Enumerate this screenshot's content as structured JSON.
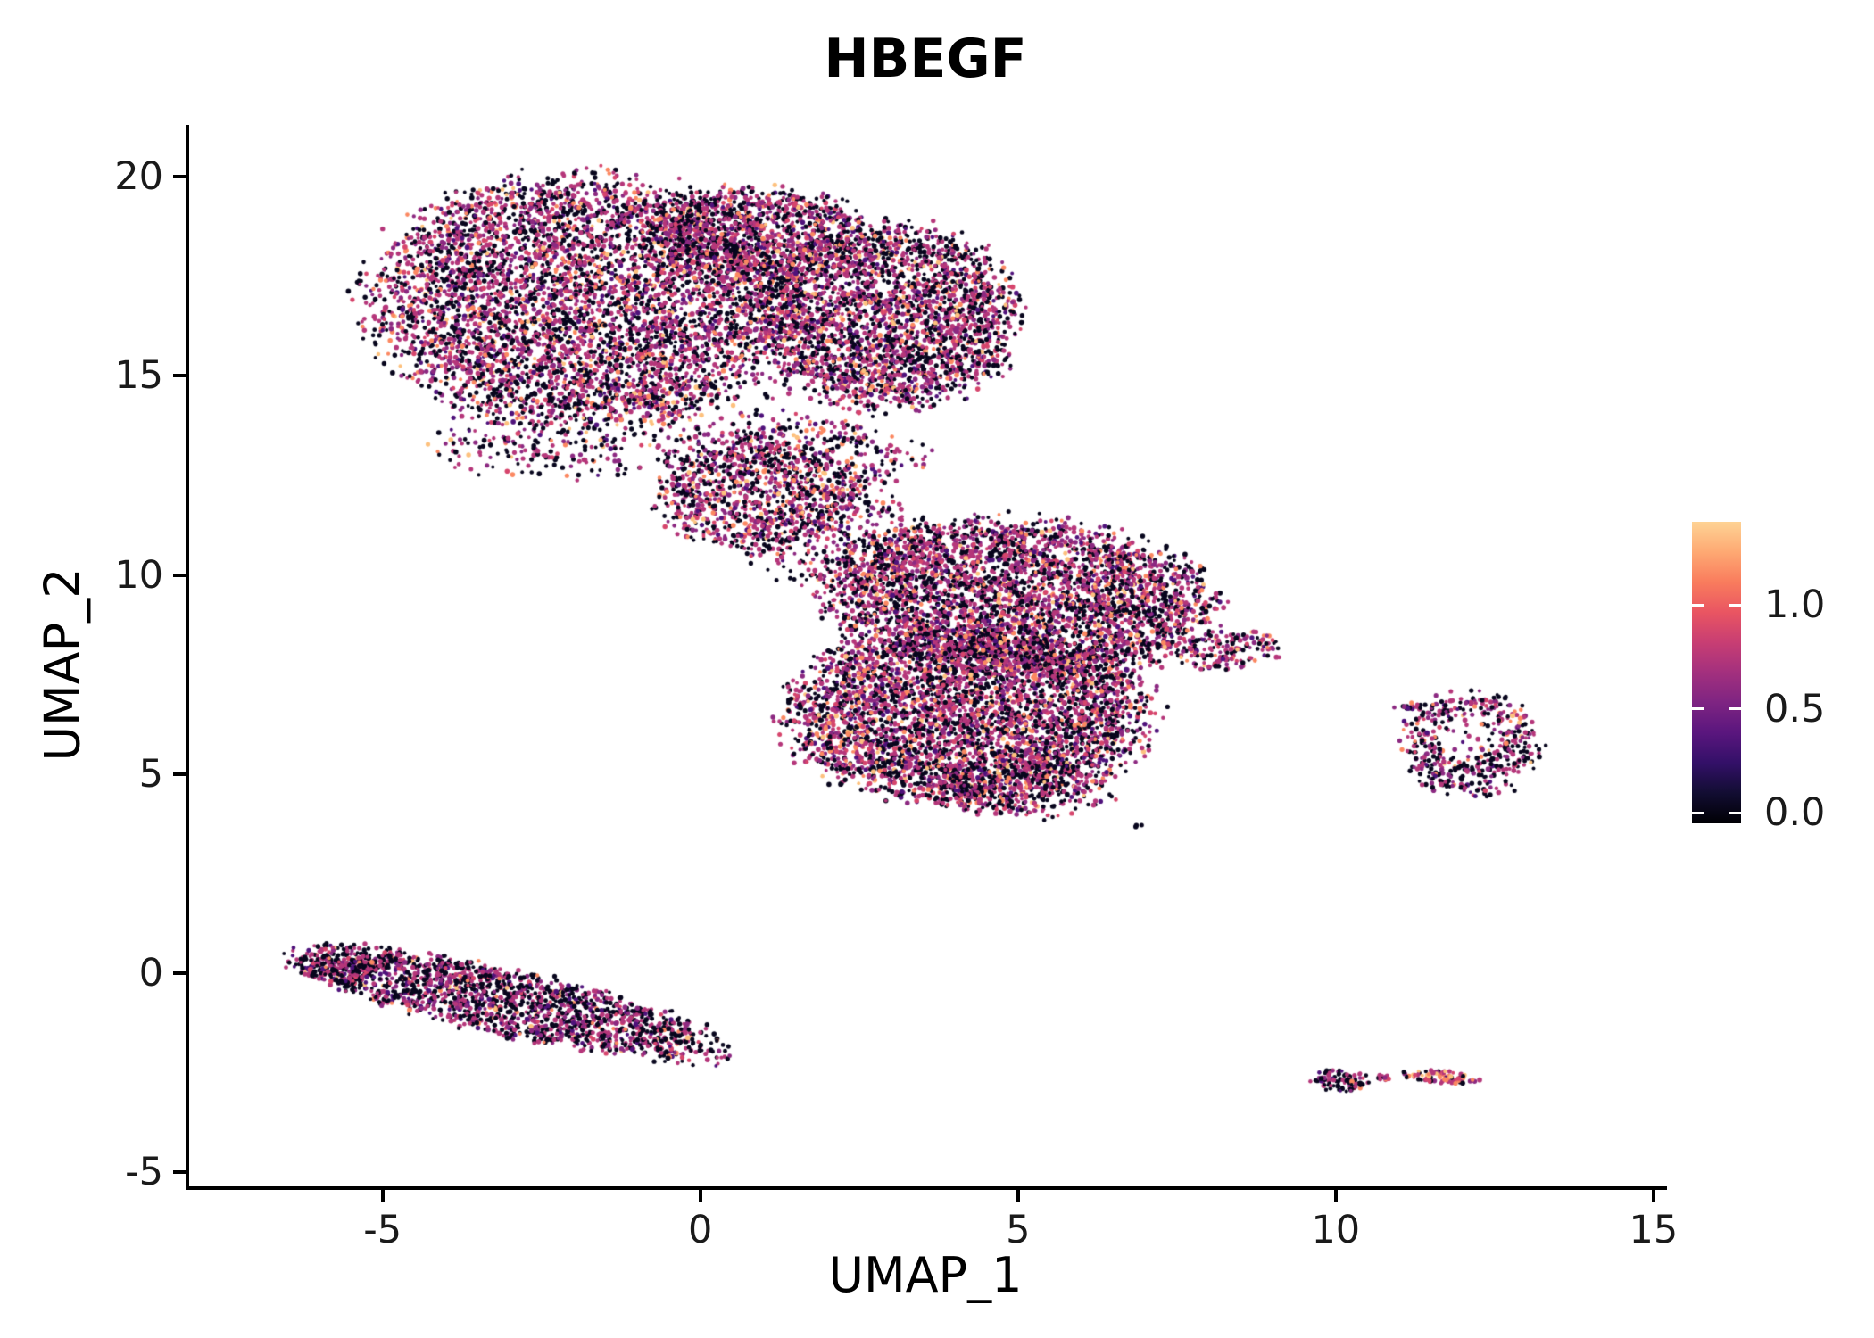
{
  "chart_data": {
    "type": "scatter",
    "title": "HBEGF",
    "xlabel": "UMAP_1",
    "ylabel": "UMAP_2",
    "x_ticks": [
      -5,
      0,
      5,
      10,
      15
    ],
    "y_ticks": [
      -5,
      0,
      5,
      10,
      15,
      20
    ],
    "xlim": [
      -8.07,
      15.17
    ],
    "ylim": [
      -5.35,
      21.3
    ],
    "grid": false,
    "background": "#ffffff",
    "point_radius_px": 2.4,
    "colorbar": {
      "position": "right",
      "colormap": "magma",
      "domain": [
        -0.05,
        1.4
      ],
      "ticks": [
        {
          "label": "1.0",
          "value": 1.0
        },
        {
          "label": "0.5",
          "value": 0.5
        },
        {
          "label": "0.0",
          "value": 0.0
        }
      ],
      "stops": [
        "#000004",
        "#120d32",
        "#331068",
        "#5a167e",
        "#7e2482",
        "#a3307e",
        "#c83e73",
        "#e95562",
        "#f97c5d",
        "#fea973",
        "#fed395"
      ]
    },
    "palette": {
      "zero": "#08061d",
      "low": "#4f127b",
      "mid": "#8c2981",
      "mid2": "#b5367a",
      "pink": "#d6456c",
      "orange": "#fb8861",
      "peach": "#fdc17e"
    },
    "mixes": {
      "default": {
        "zero": 0.36,
        "low": 0.06,
        "mid": 0.14,
        "mid2": 0.27,
        "pink": 0.07,
        "orange": 0.07,
        "peach": 0.03
      },
      "band": {
        "zero": 0.44,
        "low": 0.07,
        "mid": 0.14,
        "mid2": 0.27,
        "pink": 0.04,
        "orange": 0.03,
        "peach": 0.01
      },
      "diamond": {
        "zero": 0.42,
        "low": 0.06,
        "mid": 0.13,
        "mid2": 0.28,
        "pink": 0.04,
        "orange": 0.05,
        "peach": 0.02
      },
      "blob-a": {
        "zero": 0.45,
        "low": 0.05,
        "mid": 0.12,
        "mid2": 0.3,
        "pink": 0.04,
        "orange": 0.03,
        "peach": 0.01
      },
      "blob-b": {
        "zero": 0.15,
        "low": 0.03,
        "mid": 0.1,
        "mid2": 0.22,
        "pink": 0.12,
        "orange": 0.23,
        "peach": 0.15
      }
    },
    "clusters": [
      {
        "name": "top-left-main",
        "cx": -1.9,
        "cy": 16.9,
        "rx": 3.3,
        "ry": 3.1,
        "rot": -5,
        "n": 4800,
        "mix": "default"
      },
      {
        "name": "top-right-lobe",
        "cx": 2.9,
        "cy": 16.5,
        "rx": 2.1,
        "ry": 2.3,
        "rot": 0,
        "n": 2800,
        "mix": "default"
      },
      {
        "name": "top-bridge",
        "cx": 0.8,
        "cy": 18.6,
        "rx": 1.8,
        "ry": 1.15,
        "rot": 0,
        "n": 1100,
        "mix": "default"
      },
      {
        "name": "top-lower-fringe",
        "cx": -1.5,
        "cy": 13.6,
        "rx": 2.7,
        "ry": 1.1,
        "rot": 8,
        "n": 420,
        "mix": "default"
      },
      {
        "name": "connector-blob",
        "cx": 0.9,
        "cy": 12.0,
        "rx": 1.6,
        "ry": 1.4,
        "rot": 0,
        "n": 950,
        "mix": "default"
      },
      {
        "name": "connector-fringe",
        "cx": 1.9,
        "cy": 13.0,
        "rx": 1.6,
        "ry": 1.0,
        "rot": 0,
        "n": 280,
        "mix": "default"
      },
      {
        "name": "center-upper",
        "cx": 5.0,
        "cy": 9.4,
        "rx": 3.1,
        "ry": 1.95,
        "rot": -8,
        "n": 3800,
        "mix": "default"
      },
      {
        "name": "center-lower",
        "cx": 4.2,
        "cy": 6.5,
        "rx": 2.85,
        "ry": 2.2,
        "rot": 0,
        "n": 4100,
        "mix": "default"
      },
      {
        "name": "center-left-fringe",
        "cx": 2.2,
        "cy": 10.9,
        "rx": 1.5,
        "ry": 1.2,
        "rot": 0,
        "n": 300,
        "mix": "default"
      },
      {
        "name": "center-right-tip",
        "cx": 8.3,
        "cy": 8.1,
        "rx": 0.85,
        "ry": 0.5,
        "rot": 10,
        "n": 160,
        "mix": "default"
      },
      {
        "name": "center-bottom-tail",
        "cx": 5.1,
        "cy": 4.7,
        "rx": 1.5,
        "ry": 0.8,
        "rot": 0,
        "n": 380,
        "mix": "default"
      },
      {
        "name": "outlier-dot",
        "cx": 6.9,
        "cy": 3.7,
        "rx": 0.07,
        "ry": 0.05,
        "rot": 0,
        "n": 3,
        "mix": "default"
      },
      {
        "name": "right-diamond",
        "cx": 12.15,
        "cy": 5.75,
        "rx": 1.1,
        "ry": 1.3,
        "rot": 0,
        "n": 560,
        "mix": "diamond",
        "hole": {
          "cx": 12.1,
          "cy": 5.95,
          "r": 0.5,
          "reject": 0.78
        }
      },
      {
        "name": "right-diamond-satellite",
        "cx": 11.15,
        "cy": 6.7,
        "rx": 0.25,
        "ry": 0.12,
        "rot": 0,
        "n": 18,
        "mix": "diamond"
      },
      {
        "name": "bottom-band",
        "cx": -3.0,
        "cy": -0.75,
        "rx": 3.55,
        "ry": 0.8,
        "rot": -20,
        "n": 1800,
        "mix": "band"
      },
      {
        "name": "bottom-band-cap",
        "cx": -5.7,
        "cy": 0.2,
        "rx": 0.65,
        "ry": 0.5,
        "rot": -15,
        "n": 200,
        "mix": "band"
      },
      {
        "name": "bottom-right-blob-a",
        "cx": 10.05,
        "cy": -2.7,
        "rx": 0.45,
        "ry": 0.3,
        "rot": 0,
        "n": 90,
        "mix": "blob-a"
      },
      {
        "name": "bottom-right-dot",
        "cx": 10.75,
        "cy": -2.62,
        "rx": 0.1,
        "ry": 0.07,
        "rot": 0,
        "n": 12,
        "mix": "blob-a"
      },
      {
        "name": "bottom-right-blob-b",
        "cx": 11.65,
        "cy": -2.6,
        "rx": 0.6,
        "ry": 0.17,
        "rot": -5,
        "n": 80,
        "mix": "blob-b"
      }
    ]
  }
}
